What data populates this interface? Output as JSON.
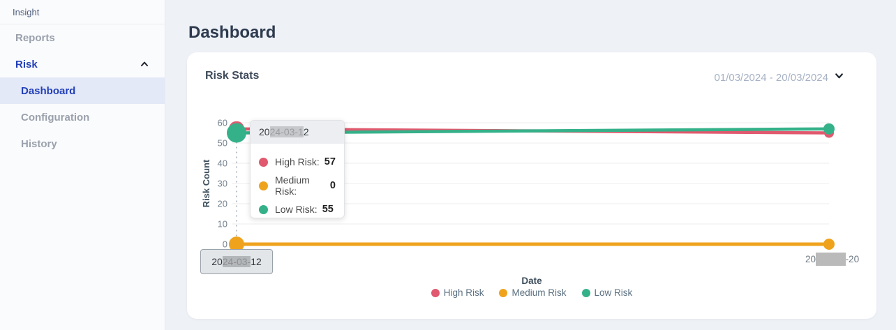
{
  "sidebar": {
    "brand": "Insight",
    "items": [
      {
        "label": "Reports"
      },
      {
        "label": "Risk"
      },
      {
        "label": "Dashboard"
      },
      {
        "label": "Configuration"
      },
      {
        "label": "History"
      }
    ]
  },
  "header": {
    "title": "Dashboard"
  },
  "card": {
    "title": "Risk Stats",
    "date_range": "01/03/2024 - 20/03/2024"
  },
  "tooltip": {
    "date": {
      "prefix": "20",
      "redacted": "24-03-1",
      "suffix": "2"
    },
    "rows": [
      {
        "label": "High Risk:",
        "value": "57"
      },
      {
        "label": "Medium Risk:",
        "value": "0"
      },
      {
        "label": "Low Risk:",
        "value": "55"
      }
    ]
  },
  "xaxis_labels": {
    "left": {
      "prefix": "20",
      "redacted": "24-03-",
      "suffix": "12"
    },
    "right": {
      "prefix": "20",
      "redacted": "24-03",
      "suffix": "-20"
    }
  },
  "colors": {
    "high_risk": "#E0596E",
    "medium_risk": "#EFA31D",
    "low_risk": "#35B189",
    "sidebar_active_text": "#2340B8",
    "sidebar_active_bg": "#E4E9F7"
  },
  "chart_data": {
    "type": "line",
    "x": [
      "2024-03-12",
      "2024-03-20"
    ],
    "series": [
      {
        "name": "High Risk",
        "color": "#E0596E",
        "values": [
          57,
          55
        ]
      },
      {
        "name": "Medium Risk",
        "color": "#EFA31D",
        "values": [
          0,
          0
        ]
      },
      {
        "name": "Low Risk",
        "color": "#35B189",
        "values": [
          55,
          57
        ]
      }
    ],
    "title": "Risk Stats",
    "xlabel": "Date",
    "ylabel": "Risk Count",
    "ylim": [
      0,
      60
    ],
    "yticks": [
      0,
      10,
      20,
      30,
      40,
      50,
      60
    ],
    "grid": "horizontal",
    "legend_position": "bottom",
    "hover_point": {
      "x": "2024-03-12",
      "high_risk": 57,
      "medium_risk": 0,
      "low_risk": 55
    }
  }
}
